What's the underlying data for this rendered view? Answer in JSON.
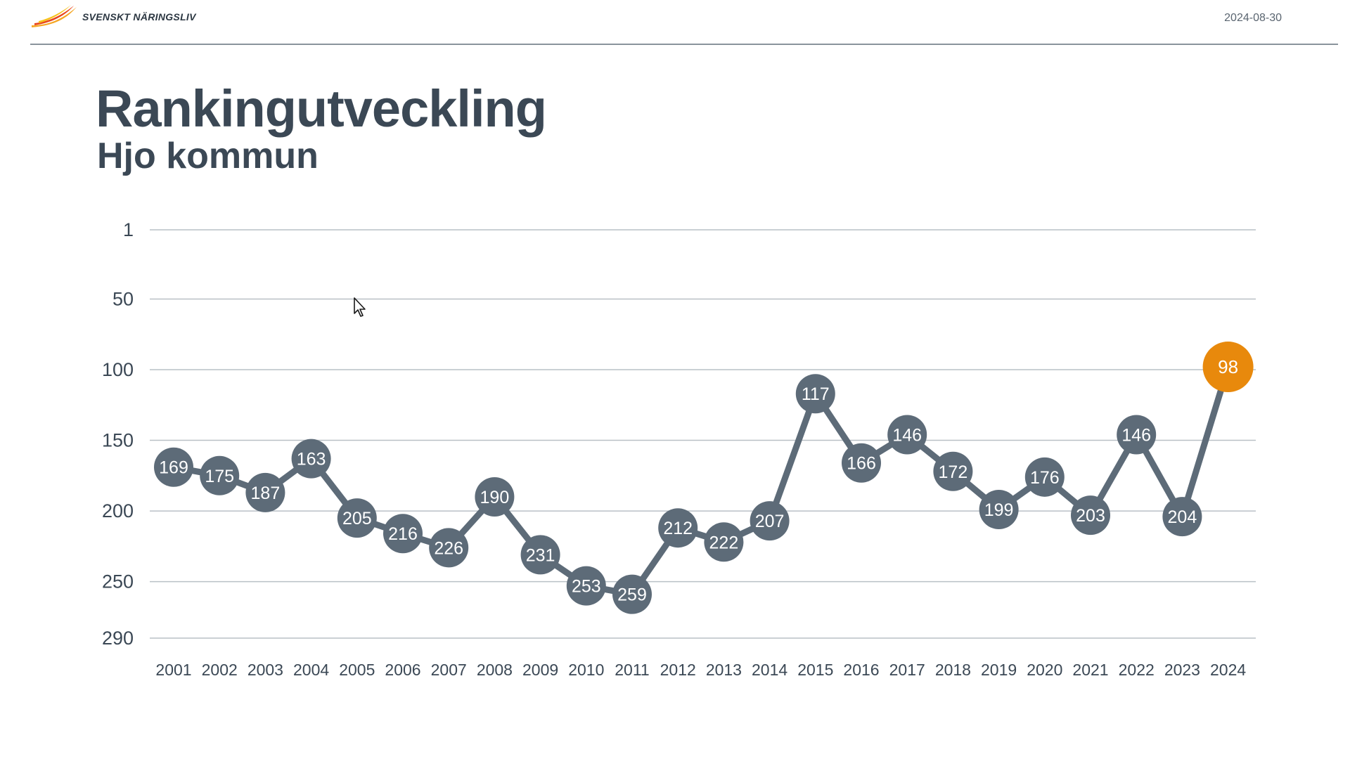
{
  "header": {
    "logo_text": "SVENSKT NÄRINGSLIV",
    "date": "2024-08-30"
  },
  "colors": {
    "text": "#3b4855",
    "series": "#5d6b78",
    "highlight": "#e8890c",
    "grid": "#b9c0c6"
  },
  "chart_data": {
    "type": "line",
    "title": "Rankingutveckling",
    "subtitle": "Hjo kommun",
    "x": [
      "2001",
      "2002",
      "2003",
      "2004",
      "2005",
      "2006",
      "2007",
      "2008",
      "2009",
      "2010",
      "2011",
      "2012",
      "2013",
      "2014",
      "2015",
      "2016",
      "2017",
      "2018",
      "2019",
      "2020",
      "2021",
      "2022",
      "2023",
      "2024"
    ],
    "series": [
      {
        "values": [
          169,
          175,
          187,
          163,
          205,
          216,
          226,
          190,
          231,
          253,
          259,
          212,
          222,
          207,
          117,
          166,
          146,
          172,
          199,
          176,
          203,
          146,
          204,
          98
        ]
      }
    ],
    "y_ticks": [
      1,
      50,
      100,
      150,
      200,
      250,
      290
    ],
    "ylim": [
      1,
      290
    ],
    "y_inverted": true,
    "highlight_last": true,
    "grid": true,
    "xlabel": "",
    "ylabel": ""
  }
}
